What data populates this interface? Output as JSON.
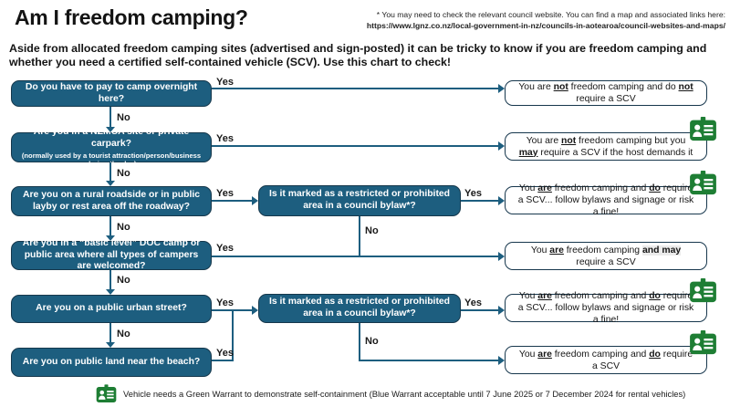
{
  "header": {
    "title": "Am I freedom camping?",
    "note_line1": "* You may need to check the relevant council website. You can find a map and associated links here:",
    "note_line2": "https://www.lgnz.co.nz/local-government-in-nz/councils-in-aotearoa/council-websites-and-maps/",
    "subtitle": "Aside from allocated freedom camping sites (advertised and sign-posted) it can be tricky to know if you are freedom camping and whether you need a certified self-contained vehicle (SCV). Use this chart to check!"
  },
  "labels": {
    "yes": "Yes",
    "no": "No"
  },
  "questions": [
    {
      "text": "Do you have to pay to camp overnight here?"
    },
    {
      "text": "Are you in a NZMCA site or private carpark?",
      "subtext": "(normally used by a tourist attraction/person/business during the day)"
    },
    {
      "text": "Are you on a rural roadside or in public layby or rest area off the roadway?"
    },
    {
      "text": "Are you in a “basic level” DOC camp or public area where all types of campers are welcomed?"
    },
    {
      "text": "Are you on a public urban street?"
    },
    {
      "text": "Are you on public land near the beach?"
    }
  ],
  "decisions": [
    {
      "text": "Is it marked as a restricted or prohibited area in a council bylaw*?"
    },
    {
      "text": "Is it marked as a restricted or prohibited area in a council bylaw*?"
    }
  ],
  "answers": [
    {
      "segments": [
        {
          "t": "You are "
        },
        {
          "t": "not",
          "b": true,
          "u": true
        },
        {
          "t": " freedom camping and do "
        },
        {
          "t": "not",
          "b": true,
          "u": true
        },
        {
          "t": " require a SCV"
        }
      ],
      "has_icon": false
    },
    {
      "segments": [
        {
          "t": "You are "
        },
        {
          "t": "not",
          "b": true,
          "u": true
        },
        {
          "t": " freedom camping but you "
        },
        {
          "t": "may",
          "b": true,
          "u": true
        },
        {
          "t": " require a SCV if the host demands it"
        }
      ],
      "has_icon": true
    },
    {
      "segments": [
        {
          "t": "You "
        },
        {
          "t": "are",
          "b": true,
          "u": true
        },
        {
          "t": " freedom camping and "
        },
        {
          "t": "do",
          "b": true,
          "u": true
        },
        {
          "t": " require a SCV... follow bylaws and signage or risk a fine!"
        }
      ],
      "has_icon": true
    },
    {
      "segments": [
        {
          "t": "You "
        },
        {
          "t": "are",
          "b": true,
          "u": true
        },
        {
          "t": " freedom camping "
        },
        {
          "t": "and may",
          "b": true,
          "hl": true
        },
        {
          "t": " require a SCV"
        }
      ],
      "has_icon": false
    },
    {
      "segments": [
        {
          "t": "You "
        },
        {
          "t": "are",
          "b": true,
          "u": true
        },
        {
          "t": " freedom camping and "
        },
        {
          "t": "do",
          "b": true,
          "u": true
        },
        {
          "t": " require a SCV... follow bylaws and signage or risk a fine!"
        }
      ],
      "has_icon": true
    },
    {
      "segments": [
        {
          "t": "You "
        },
        {
          "t": "are",
          "b": true,
          "u": true
        },
        {
          "t": " freedom camping and "
        },
        {
          "t": "do",
          "b": true,
          "u": true
        },
        {
          "t": " require a SCV"
        }
      ],
      "has_icon": true
    }
  ],
  "footer": {
    "note": "Vehicle needs a Green Warrant to demonstrate self-containment (Blue Warrant acceptable until 7 June 2025 or 7 December 2024 for rental vehicles)"
  },
  "colors": {
    "box_teal": "#1d5e7f",
    "box_border": "#16384c",
    "answer_border": "#17374d",
    "warrant_green": "#1e7e34"
  }
}
